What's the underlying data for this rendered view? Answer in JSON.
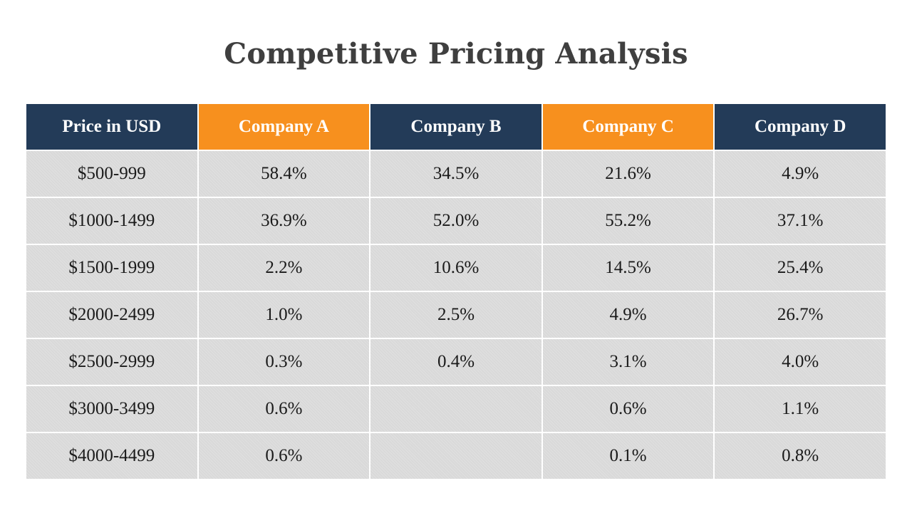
{
  "slide": {
    "title": "Competitive Pricing Analysis"
  },
  "table": {
    "headers": [
      "Price in USD",
      "Company A",
      "Company B",
      "Company C",
      "Company D"
    ],
    "header_colors": [
      "#233b58",
      "#f7901e",
      "#233b58",
      "#f7901e",
      "#233b58"
    ],
    "rows": [
      [
        "$500-999",
        "58.4%",
        "34.5%",
        "21.6%",
        "4.9%"
      ],
      [
        "$1000-1499",
        "36.9%",
        "52.0%",
        "55.2%",
        "37.1%"
      ],
      [
        "$1500-1999",
        "2.2%",
        "10.6%",
        "14.5%",
        "25.4%"
      ],
      [
        "$2000-2499",
        "1.0%",
        "2.5%",
        "4.9%",
        "26.7%"
      ],
      [
        "$2500-2999",
        "0.3%",
        "0.4%",
        "3.1%",
        "4.0%"
      ],
      [
        "$3000-3499",
        "0.6%",
        "",
        "0.6%",
        "1.1%"
      ],
      [
        "$4000-4499",
        "0.6%",
        "",
        "0.1%",
        "0.8%"
      ]
    ]
  },
  "colors": {
    "title_text": "#3f3f3f",
    "header_navy": "#233b58",
    "header_orange": "#f7901e",
    "cell_background": "#d9d9d9"
  }
}
